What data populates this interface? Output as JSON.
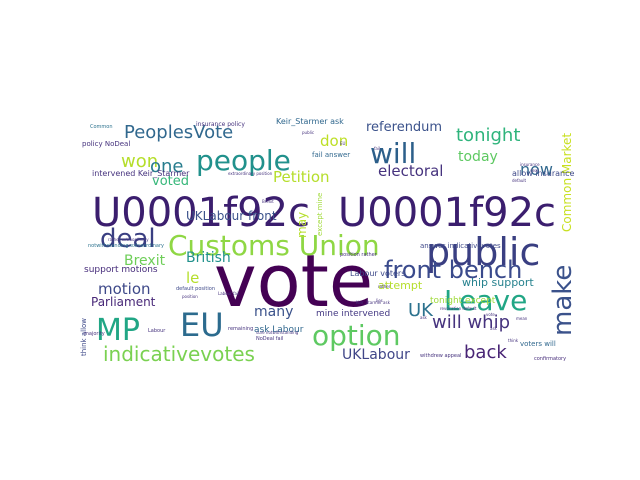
{
  "words": [
    {
      "text": "vote",
      "color": "#440154"
    },
    {
      "text": "U0001f92c",
      "color": "#3b1e6e"
    },
    {
      "text": "U0001f92c",
      "color": "#3b1e6e"
    },
    {
      "text": "public",
      "color": "#3a3f82"
    },
    {
      "text": "Customs Union",
      "color": "#8fd744"
    },
    {
      "text": "people",
      "color": "#21918c"
    },
    {
      "text": "will",
      "color": "#2c5f8a"
    },
    {
      "text": "deal",
      "color": "#3a3f82"
    },
    {
      "text": "front bench",
      "color": "#3a4a8c"
    },
    {
      "text": "Leave",
      "color": "#21a685"
    },
    {
      "text": "MP",
      "color": "#21a685"
    },
    {
      "text": "EU",
      "color": "#2c6b8e"
    },
    {
      "text": "option",
      "color": "#5ec962"
    },
    {
      "text": "make",
      "color": "#3b528b"
    },
    {
      "text": "indicativevotes",
      "color": "#7ad151"
    },
    {
      "text": "PeoplesVote",
      "color": "#31688e"
    },
    {
      "text": "tonight",
      "color": "#2fb47c"
    },
    {
      "text": "won",
      "color": "#b5de2b"
    },
    {
      "text": "one",
      "color": "#287d8e"
    },
    {
      "text": "Petition",
      "color": "#b5de2b"
    },
    {
      "text": "don",
      "color": "#bddf26"
    },
    {
      "text": "referendum",
      "color": "#3b528b"
    },
    {
      "text": "today",
      "color": "#5ec962"
    },
    {
      "text": "now",
      "color": "#31688e"
    },
    {
      "text": "electoral",
      "color": "#46337e"
    },
    {
      "text": "voted",
      "color": "#35b779"
    },
    {
      "text": "Common Market",
      "color": "#c8e020"
    },
    {
      "text": "UKLabour front",
      "color": "#3b528b"
    },
    {
      "text": "may",
      "color": "#b5de2b"
    },
    {
      "text": "Brexit",
      "color": "#6ece58"
    },
    {
      "text": "British",
      "color": "#21918c"
    },
    {
      "text": "le",
      "color": "#b5de2b"
    },
    {
      "text": "motion",
      "color": "#3e4989"
    },
    {
      "text": "support motions",
      "color": "#472d7b"
    },
    {
      "text": "Parliament",
      "color": "#482878"
    },
    {
      "text": "many",
      "color": "#3b528b"
    },
    {
      "text": "ask Labour",
      "color": "#31688e"
    },
    {
      "text": "mine intervened",
      "color": "#443983"
    },
    {
      "text": "UK",
      "color": "#2c728e"
    },
    {
      "text": "will whip",
      "color": "#46337e"
    },
    {
      "text": "attempt",
      "color": "#b5de2b"
    },
    {
      "text": "whip support",
      "color": "#26828e"
    },
    {
      "text": "back",
      "color": "#482475"
    },
    {
      "text": "UKLabour",
      "color": "#404688"
    },
    {
      "text": "tonight except",
      "color": "#9fda3a"
    },
    {
      "text": "Labour voters",
      "color": "#3e4989"
    },
    {
      "text": "intervened Keir_Starmer",
      "color": "#46337e"
    },
    {
      "text": "policy NoDeal",
      "color": "#46337e"
    },
    {
      "text": "Keir_Starmer ask",
      "color": "#31688e"
    },
    {
      "text": "fail answer",
      "color": "#31688e"
    },
    {
      "text": "voters will",
      "color": "#31688e"
    },
    {
      "text": "allow insurance",
      "color": "#3e4989"
    },
    {
      "text": "answer indicativevotes",
      "color": "#3e4989"
    },
    {
      "text": "except mine",
      "color": "#a0da39"
    },
    {
      "text": "think allow",
      "color": "#3e4989"
    },
    {
      "text": "insurance policy",
      "color": "#46337e"
    },
    {
      "text": "withdrew appeal",
      "color": "#46337e"
    },
    {
      "text": "default position",
      "color": "#3e4989"
    },
    {
      "text": "Common",
      "color": "#2c728e"
    },
    {
      "text": "position rather",
      "color": "#46337e"
    },
    {
      "text": "confirmatory",
      "color": "#472d7b"
    },
    {
      "text": "majority",
      "color": "#46337e"
    },
    {
      "text": "remaining",
      "color": "#46337e"
    },
    {
      "text": "NoDeal fail",
      "color": "#46337e"
    },
    {
      "text": "Labour",
      "color": "#46337e"
    },
    {
      "text": "notwithstanding extraordinary",
      "color": "#2c728e"
    },
    {
      "text": "extraordinary position",
      "color": "#46337e"
    },
    {
      "text": "sure notwithstanding",
      "color": "#46337e"
    },
    {
      "text": "revocation default",
      "color": "#46337e"
    },
    {
      "text": "rather extraordinary",
      "color": "#46337e"
    },
    {
      "text": "lies",
      "color": "#46337e"
    },
    {
      "text": "mean",
      "color": "#46337e"
    },
    {
      "text": "Keir_Starmer ask",
      "color": "#46337e"
    },
    {
      "text": "Labour fail",
      "color": "#46337e"
    },
    {
      "text": "insurance",
      "color": "#46337e"
    },
    {
      "text": "position",
      "color": "#46337e"
    },
    {
      "text": "default",
      "color": "#46337e"
    },
    {
      "text": "ask",
      "color": "#46337e"
    },
    {
      "text": "fail",
      "color": "#46337e"
    },
    {
      "text": "Brexit",
      "color": "#46337e"
    },
    {
      "text": "public",
      "color": "#46337e"
    },
    {
      "text": "vote",
      "color": "#46337e"
    },
    {
      "text": "rather",
      "color": "#46337e"
    },
    {
      "text": "think",
      "color": "#46337e"
    },
    {
      "text": "deal",
      "color": "#46337e"
    },
    {
      "text": "ask",
      "color": "#46337e"
    },
    {
      "text": "EU",
      "color": "#46337e"
    }
  ]
}
